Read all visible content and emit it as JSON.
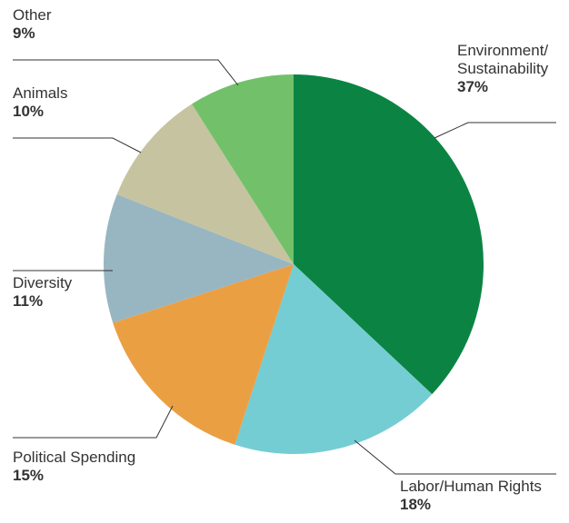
{
  "chart_data": {
    "type": "pie",
    "start_angle_deg": 0,
    "direction": "clockwise",
    "slices": [
      {
        "label": "Environment/\nSustainability",
        "value": 37,
        "display": "37%",
        "color": "#0b8443"
      },
      {
        "label": "Labor/Human Rights",
        "value": 18,
        "display": "18%",
        "color": "#74cdd3"
      },
      {
        "label": "Political Spending",
        "value": 15,
        "display": "15%",
        "color": "#eb9f43"
      },
      {
        "label": "Diversity",
        "value": 11,
        "display": "11%",
        "color": "#98b6c1"
      },
      {
        "label": "Animals",
        "value": 10,
        "display": "10%",
        "color": "#c6c3a0"
      },
      {
        "label": "Other",
        "value": 9,
        "display": "9%",
        "color": "#72c16a"
      }
    ],
    "legend": "none"
  }
}
